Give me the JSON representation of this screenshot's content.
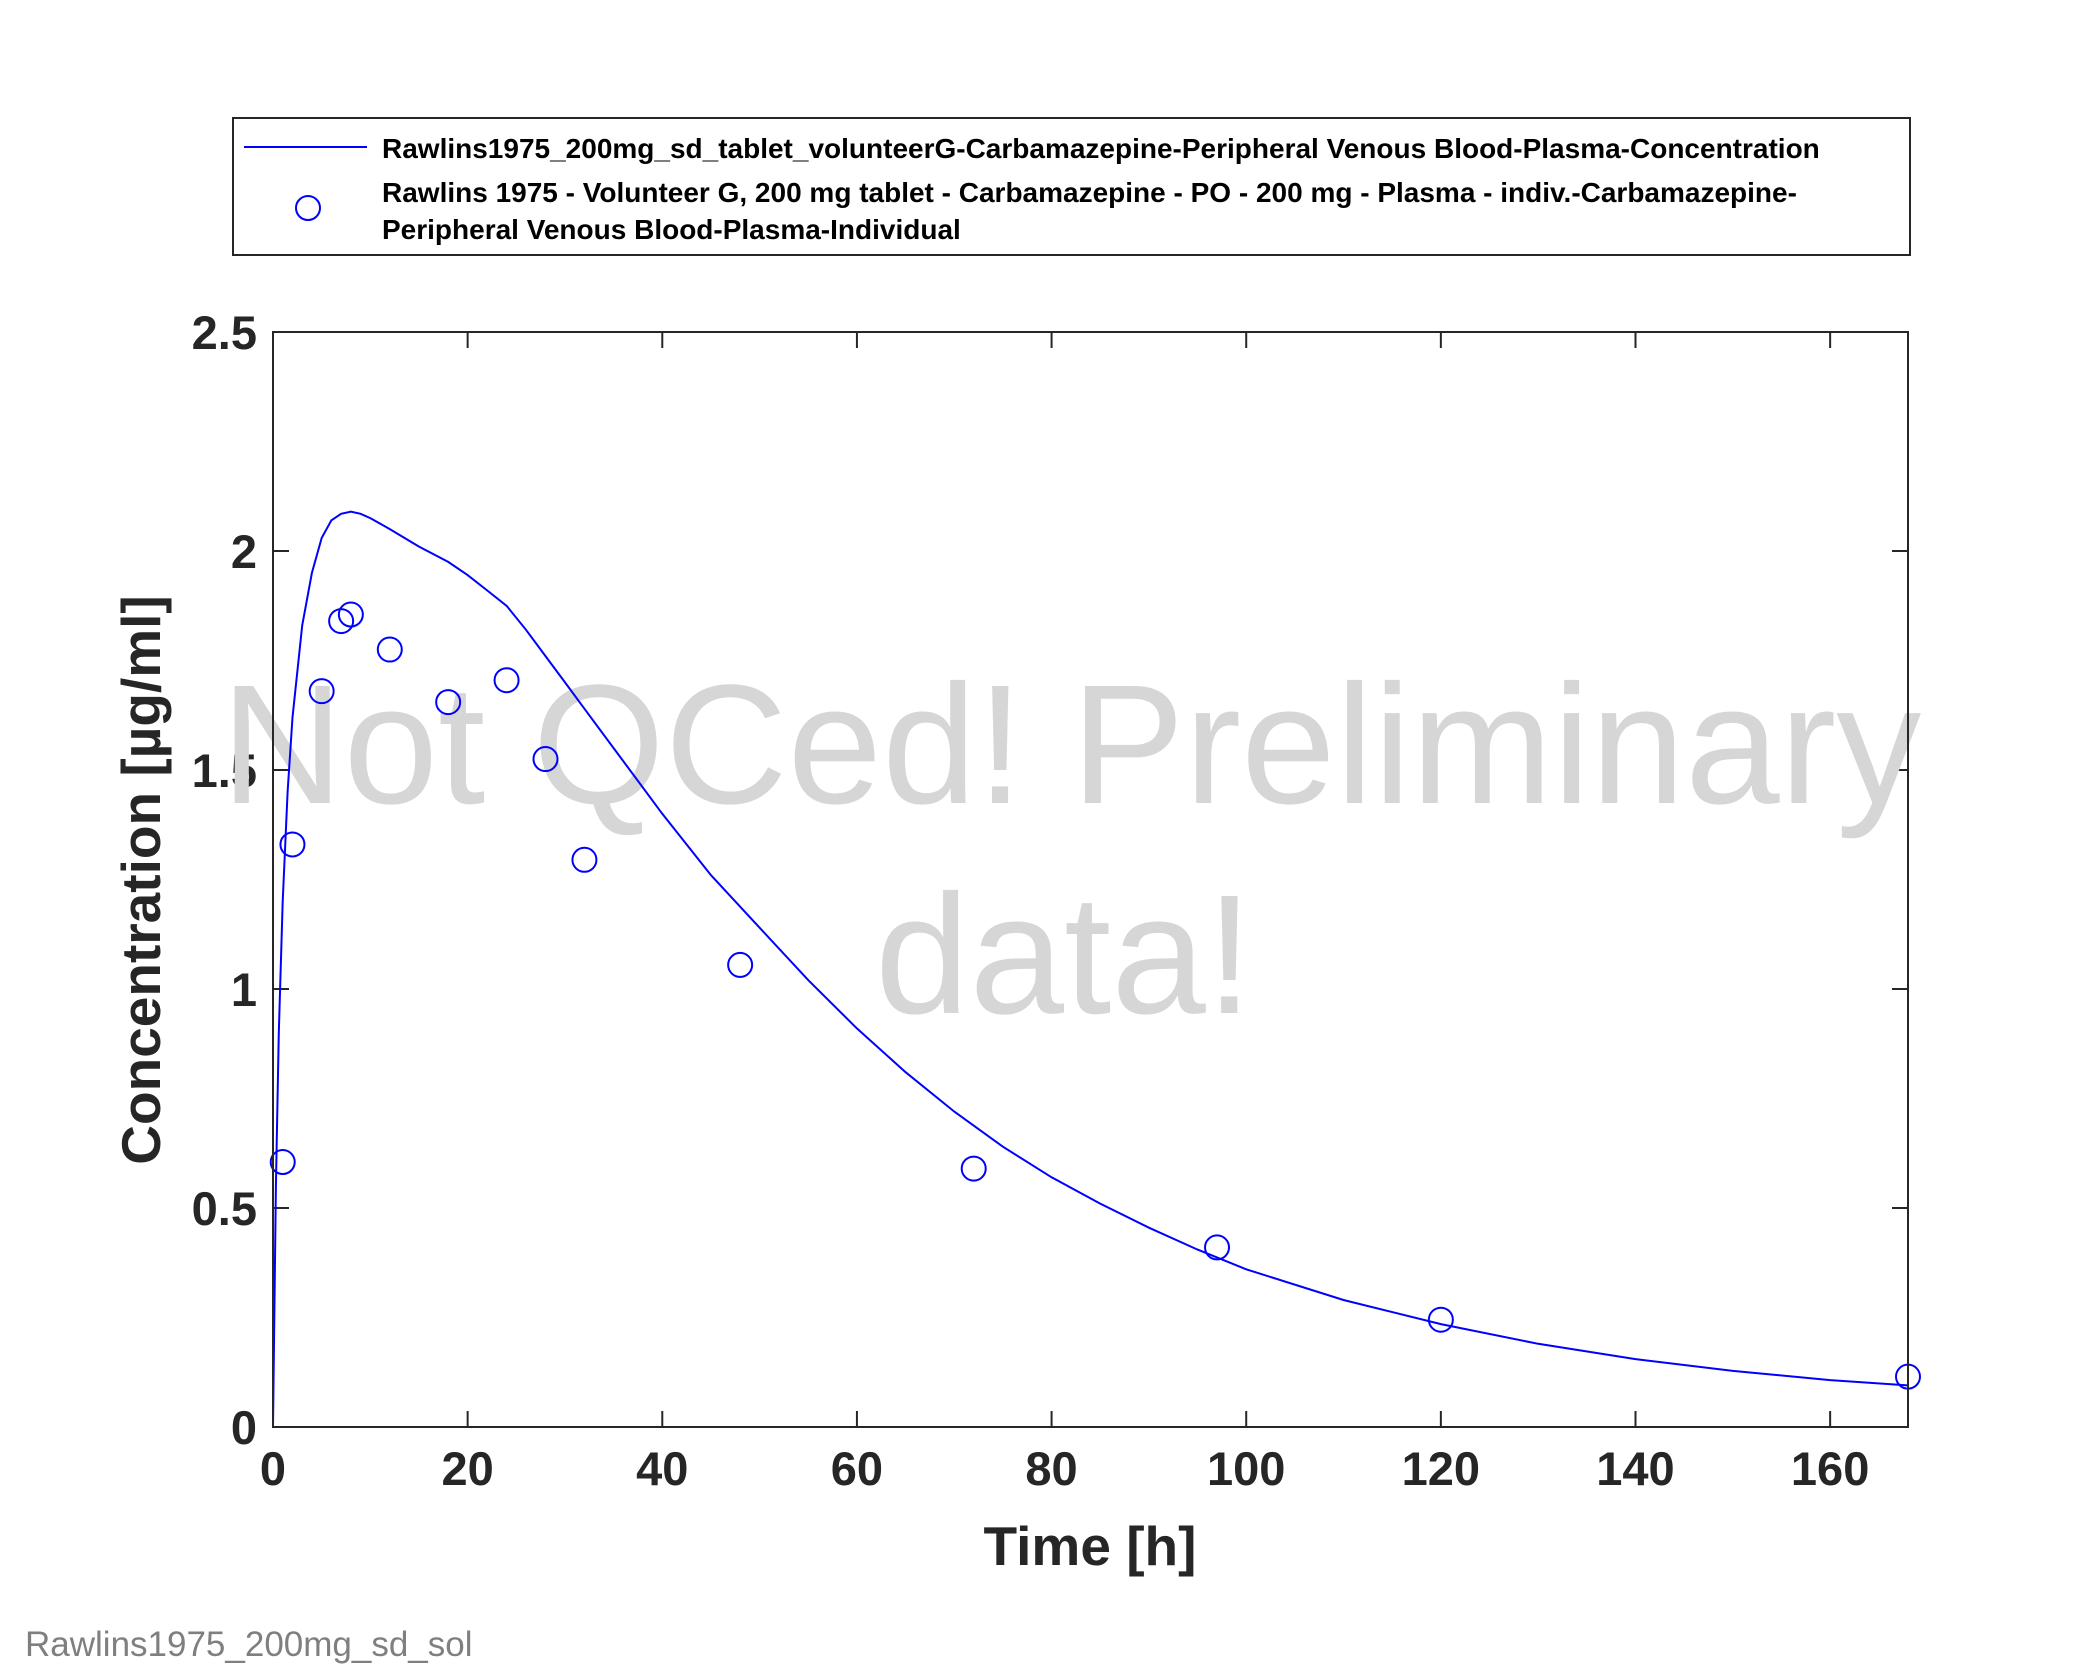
{
  "chart_data": {
    "type": "line",
    "xlabel": "Time [h]",
    "ylabel": "Concentration [µg/ml]",
    "xlim": [
      0,
      168
    ],
    "ylim": [
      0,
      2.5
    ],
    "xticks": [
      "0",
      "20",
      "40",
      "60",
      "80",
      "100",
      "120",
      "140",
      "160"
    ],
    "xtick_values": [
      0,
      20,
      40,
      60,
      80,
      100,
      120,
      140,
      160
    ],
    "yticks": [
      "0",
      "0.5",
      "1",
      "1.5",
      "2",
      "2.5"
    ],
    "ytick_values": [
      0,
      0.5,
      1,
      1.5,
      2,
      2.5
    ],
    "grid": false,
    "legend_position": "top",
    "colors": {
      "series": "#0000ff",
      "axis": "#262626",
      "watermark": "#d6d6d6",
      "footer": "#7f7f7f"
    },
    "series": [
      {
        "name": "Rawlins1975_200mg_sd_tablet_volunteerG-Carbamazepine-Peripheral Venous Blood-Plasma-Concentration",
        "kind": "line",
        "x": [
          0,
          0.3,
          0.6,
          1,
          1.5,
          2,
          3,
          4,
          5,
          6,
          7,
          8,
          9,
          10,
          12,
          15,
          18,
          20,
          22,
          24,
          26,
          28,
          30,
          32,
          35,
          40,
          45,
          50,
          55,
          60,
          65,
          70,
          75,
          80,
          85,
          90,
          95,
          100,
          110,
          120,
          130,
          140,
          150,
          160,
          168
        ],
        "y": [
          0,
          0.55,
          0.9,
          1.2,
          1.45,
          1.62,
          1.83,
          1.95,
          2.03,
          2.07,
          2.085,
          2.09,
          2.085,
          2.075,
          2.05,
          2.01,
          1.975,
          1.945,
          1.91,
          1.875,
          1.82,
          1.76,
          1.7,
          1.64,
          1.55,
          1.4,
          1.26,
          1.14,
          1.02,
          0.91,
          0.81,
          0.72,
          0.64,
          0.57,
          0.51,
          0.455,
          0.405,
          0.36,
          0.29,
          0.235,
          0.19,
          0.155,
          0.128,
          0.107,
          0.095
        ]
      },
      {
        "name": "Rawlins 1975 - Volunteer G, 200 mg tablet - Carbamazepine - PO - 200 mg - Plasma - indiv.-Carbamazepine-Peripheral Venous Blood-Plasma-Individual",
        "legend_lines": [
          "Rawlins 1975 - Volunteer G, 200 mg tablet - Carbamazepine - PO - 200 mg - Plasma - indiv.-Carbamazepine-",
          "Peripheral Venous Blood-Plasma-Individual"
        ],
        "kind": "scatter",
        "marker": "circle",
        "x": [
          1,
          2,
          5,
          7,
          8,
          12,
          18,
          24,
          28,
          32,
          48,
          72,
          97,
          120,
          168
        ],
        "y": [
          0.605,
          1.33,
          1.68,
          1.84,
          1.855,
          1.775,
          1.655,
          1.705,
          1.525,
          1.295,
          1.055,
          0.59,
          0.41,
          0.245,
          0.115
        ]
      }
    ]
  },
  "watermark": {
    "line1": "Not QCed! Preliminary",
    "line2": "data!"
  },
  "footer": "Rawlins1975_200mg_sd_sol"
}
